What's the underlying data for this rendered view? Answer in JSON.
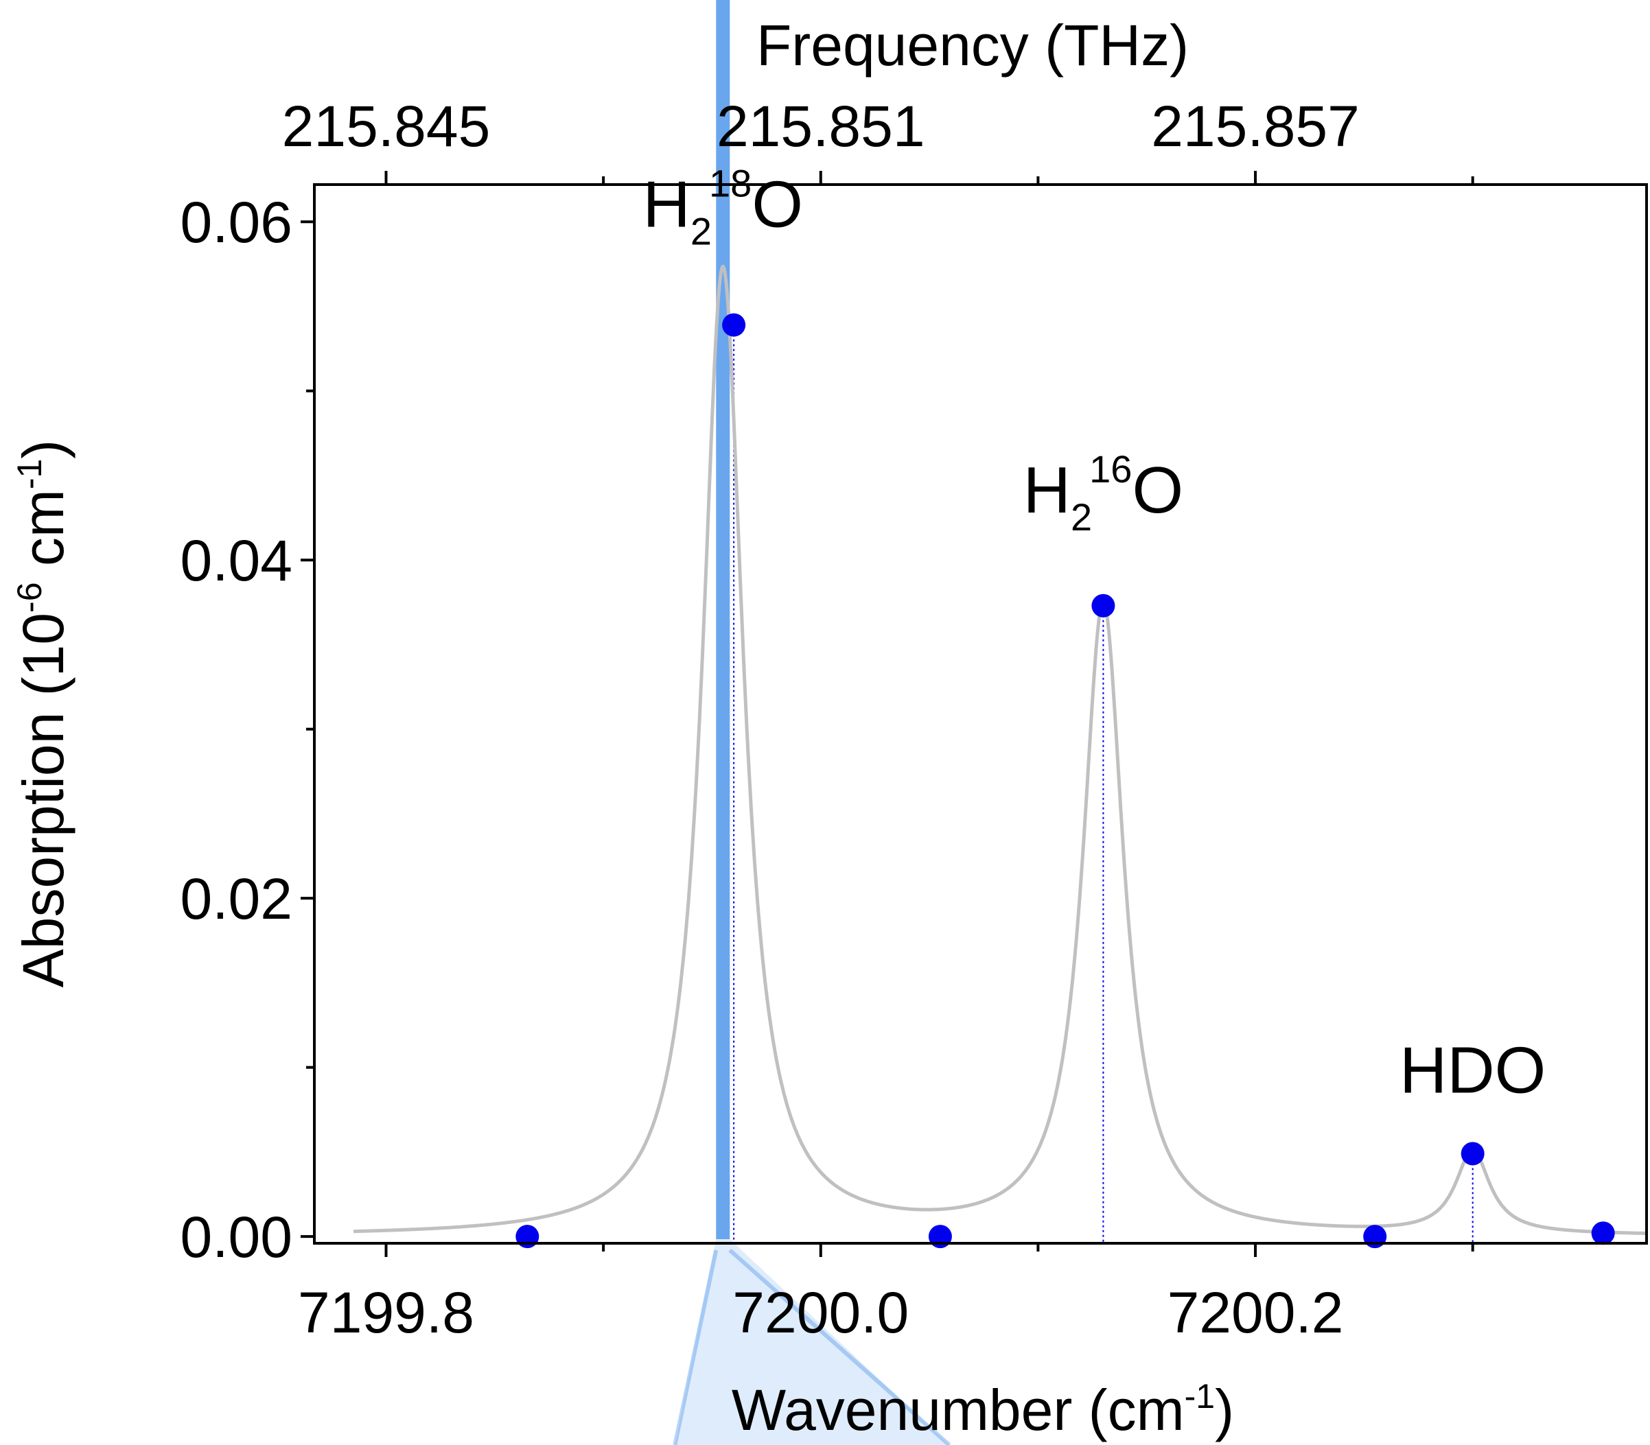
{
  "chart_data": {
    "type": "line",
    "xlabel_prefix": "Wavenumber (cm",
    "xlabel_exp": "-1",
    "xlabel_suffix": ")",
    "top_axis_label": "Frequency (THz)",
    "ylabel_prefix": "Absorption (10",
    "ylabel_exp1": "-6",
    "ylabel_mid": " cm",
    "ylabel_exp2": "-1",
    "ylabel_suffix": ")",
    "xlim": [
      7199.767,
      7200.38
    ],
    "ylim": [
      -0.0004,
      0.0622
    ],
    "x_ticks_major": [
      7199.8,
      7200.0,
      7200.2
    ],
    "x_tick_labels": [
      "7199.8",
      "7200.0",
      "7200.2"
    ],
    "x_ticks_minor": [
      7199.9,
      7200.1,
      7200.3
    ],
    "top_ticks_major": [
      7199.8,
      7200.0,
      7200.2
    ],
    "top_tick_labels": [
      "215.845",
      "215.851",
      "215.857"
    ],
    "top_ticks_minor": [
      7199.9,
      7200.1,
      7200.3
    ],
    "y_ticks_major": [
      0.0,
      0.02,
      0.04,
      0.06
    ],
    "y_tick_labels": [
      "0.00",
      "0.02",
      "0.04",
      "0.06"
    ],
    "y_ticks_minor": [
      0.01,
      0.03,
      0.05
    ],
    "grid": false,
    "peaks": [
      {
        "center": 7199.955,
        "amplitude": 0.0572,
        "hwhm": 0.0115
      },
      {
        "center": 7200.13,
        "amplitude": 0.0373,
        "hwhm": 0.0115
      },
      {
        "center": 7200.3,
        "amplitude": 0.0049,
        "hwhm": 0.0095
      }
    ],
    "series_color": "#c0c0c0",
    "markers": {
      "color": "#0000ee",
      "x": [
        7199.865,
        7199.96,
        7200.055,
        7200.13,
        7200.255,
        7200.3,
        7200.36
      ],
      "y": [
        0.0,
        0.0539,
        0.0,
        0.0373,
        0.0,
        0.0049,
        0.0002
      ]
    },
    "dotted_lines_x": [
      7199.96,
      7200.13,
      7200.3
    ],
    "highlight": {
      "x": 7199.955,
      "color": "#4f97ea"
    },
    "annotations": [
      {
        "base": "H",
        "sub": "2",
        "sup": "18",
        "tail": "O",
        "x": 7199.955,
        "y": 0.0597
      },
      {
        "base": "H",
        "sub": "2",
        "sup": "16",
        "tail": "O",
        "x": 7200.13,
        "y": 0.0428
      },
      {
        "base": "HDO",
        "sub": "",
        "sup": "",
        "tail": "",
        "x": 7200.3,
        "y": 0.0085
      }
    ]
  }
}
